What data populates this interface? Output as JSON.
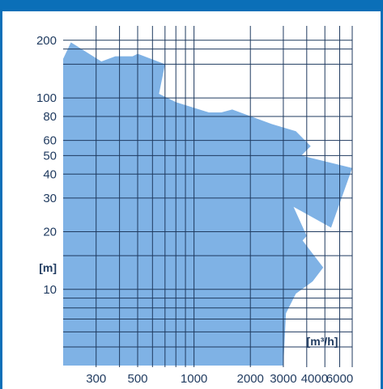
{
  "chart_data": {
    "type": "area",
    "title": "",
    "xlabel": "",
    "ylabel": "",
    "x_scale": "log",
    "y_scale": "log",
    "xlim": [
      200,
      7000
    ],
    "ylim": [
      4,
      220
    ],
    "x_tick_labels": [
      {
        "value": 300,
        "label": "300"
      },
      {
        "value": 500,
        "label": "500"
      },
      {
        "value": 1000,
        "label": "1000"
      },
      {
        "value": 2000,
        "label": "2000"
      },
      {
        "value": 3000,
        "label": "3000"
      },
      {
        "value": 6000,
        "label": "6000"
      }
    ],
    "x_tick_label_extra": {
      "value": 4400,
      "label": "4000"
    },
    "y_tick_labels": [
      {
        "value": 200,
        "label": "200"
      },
      {
        "value": 100,
        "label": "100"
      },
      {
        "value": 80,
        "label": "80"
      },
      {
        "value": 60,
        "label": "60"
      },
      {
        "value": 50,
        "label": "50"
      },
      {
        "value": 40,
        "label": "40"
      },
      {
        "value": 30,
        "label": "30"
      },
      {
        "value": 20,
        "label": "20"
      },
      {
        "value": 10,
        "label": "10"
      }
    ],
    "x_gridlines": [
      300,
      400,
      500,
      600,
      700,
      800,
      900,
      1000,
      2000,
      3000,
      4000,
      5000,
      6000,
      7000
    ],
    "y_gridlines": [
      200,
      180,
      150,
      100,
      80,
      60,
      50,
      40,
      30,
      20,
      15,
      10,
      9,
      8,
      7,
      6,
      5
    ],
    "y_unit_label": "[m]",
    "x_unit_label": "[m³/h]",
    "grid": true,
    "region_color": "#7fb2e5",
    "grid_color": "#1f3a5f",
    "region": [
      [
        200,
        160
      ],
      [
        220,
        195
      ],
      [
        320,
        155
      ],
      [
        380,
        165
      ],
      [
        470,
        165
      ],
      [
        500,
        170
      ],
      [
        700,
        150
      ],
      [
        650,
        105
      ],
      [
        800,
        95
      ],
      [
        1200,
        84
      ],
      [
        1400,
        84
      ],
      [
        1600,
        87
      ],
      [
        2600,
        73
      ],
      [
        3500,
        67
      ],
      [
        4200,
        56
      ],
      [
        3750,
        50
      ],
      [
        7000,
        43
      ],
      [
        5400,
        21
      ],
      [
        3400,
        27
      ],
      [
        4000,
        19
      ],
      [
        3800,
        18
      ],
      [
        4900,
        13
      ],
      [
        4300,
        11
      ],
      [
        3500,
        9.5
      ],
      [
        3100,
        7.5
      ],
      [
        3000,
        4
      ],
      [
        200,
        4
      ]
    ]
  }
}
